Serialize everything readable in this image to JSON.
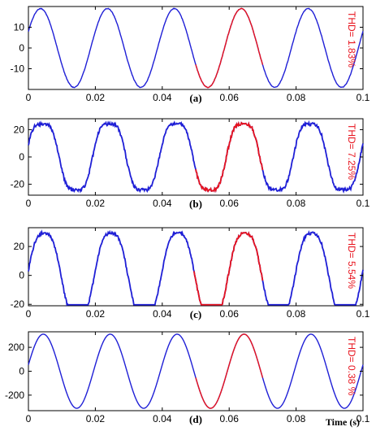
{
  "chart_data": [
    {
      "type": "line",
      "panel_label": "(a)",
      "annotation": "THD= 1.83%",
      "xlim": [
        0,
        0.1
      ],
      "ylim": [
        -20,
        20
      ],
      "x_ticks": [
        0,
        0.02,
        0.04,
        0.06,
        0.08,
        0.1
      ],
      "x_tick_labels": [
        "0",
        "0.02",
        "0.04",
        "0.06",
        "0.08",
        "0.1"
      ],
      "y_ticks": [
        10,
        0,
        -10
      ],
      "y_tick_labels": [
        "10",
        "0",
        "-10"
      ],
      "xlabel": "",
      "series": [
        {
          "color": "#1f1fd6",
          "amplitude": 19,
          "frequency_hz": 50,
          "phase_deg": 25,
          "x_range": [
            0,
            0.1
          ],
          "ripple": 0.15,
          "note": "waveform"
        },
        {
          "color": "#e8141e",
          "amplitude": 19,
          "frequency_hz": 50,
          "phase_deg": 25,
          "x_range": [
            0.05,
            0.07
          ],
          "ripple": 0.15,
          "note": "highlighted cycle"
        }
      ]
    },
    {
      "type": "line",
      "panel_label": "(b)",
      "annotation": "THD= 7.25%",
      "xlim": [
        0,
        0.1
      ],
      "ylim": [
        -28,
        28
      ],
      "x_ticks": [
        0,
        0.02,
        0.04,
        0.06,
        0.08,
        0.1
      ],
      "x_tick_labels": [
        "0",
        "0.02",
        "0.04",
        "0.06",
        "0.08",
        "0.1"
      ],
      "y_ticks": [
        20,
        0,
        -20
      ],
      "y_tick_labels": [
        "20",
        "0",
        "-20"
      ],
      "xlabel": "",
      "series": [
        {
          "color": "#1f1fd6",
          "amplitude": 25,
          "frequency_hz": 50,
          "phase_deg": 15,
          "x_range": [
            0,
            0.1
          ],
          "ripple": 1.2,
          "harmonic3": 0.12
        },
        {
          "color": "#e8141e",
          "amplitude": 25,
          "frequency_hz": 50,
          "phase_deg": 15,
          "x_range": [
            0.05,
            0.07
          ],
          "ripple": 1.2,
          "harmonic3": 0.12
        }
      ]
    },
    {
      "type": "line",
      "panel_label": "(c)",
      "annotation": "THD= 5.54%",
      "xlim": [
        0,
        0.1
      ],
      "ylim": [
        -21,
        33
      ],
      "x_ticks": [
        0,
        0.02,
        0.04,
        0.06,
        0.08,
        0.1
      ],
      "x_tick_labels": [
        "0",
        "0.02",
        "0.04",
        "0.06",
        "0.08",
        "0.1"
      ],
      "y_ticks": [
        20,
        0,
        -20
      ],
      "y_tick_labels": [
        "20",
        "0",
        "-20"
      ],
      "xlabel": "",
      "series": [
        {
          "color": "#1f1fd6",
          "amplitude": 30,
          "frequency_hz": 50,
          "phase_deg": 5,
          "x_range": [
            0,
            0.1
          ],
          "ripple": 1.0,
          "harmonic3": 0.08,
          "clip_low": -20.3
        },
        {
          "color": "#e8141e",
          "amplitude": 30,
          "frequency_hz": 50,
          "phase_deg": 5,
          "x_range": [
            0.0495,
            0.07
          ],
          "ripple": 1.0,
          "harmonic3": 0.08,
          "clip_low": -20.3
        }
      ]
    },
    {
      "type": "line",
      "panel_label": "(d)",
      "annotation": "THD= 0.38 %",
      "xlim": [
        0,
        0.1
      ],
      "ylim": [
        -330,
        330
      ],
      "x_ticks": [
        0,
        0.02,
        0.04,
        0.06,
        0.08,
        0.1
      ],
      "x_tick_labels": [
        "0",
        "0.02",
        "0.04",
        "0.06",
        "0.08",
        "0.1"
      ],
      "y_ticks": [
        200,
        0,
        -200
      ],
      "y_tick_labels": [
        "200",
        "0",
        "-200"
      ],
      "xlabel": "Time (s)",
      "series": [
        {
          "color": "#1f1fd6",
          "amplitude": 310,
          "frequency_hz": 50,
          "phase_deg": 10,
          "x_range": [
            0,
            0.1
          ],
          "ripple": 0
        },
        {
          "color": "#e8141e",
          "amplitude": 310,
          "frequency_hz": 50,
          "phase_deg": 10,
          "x_range": [
            0.05,
            0.07
          ],
          "ripple": 0
        }
      ]
    }
  ]
}
